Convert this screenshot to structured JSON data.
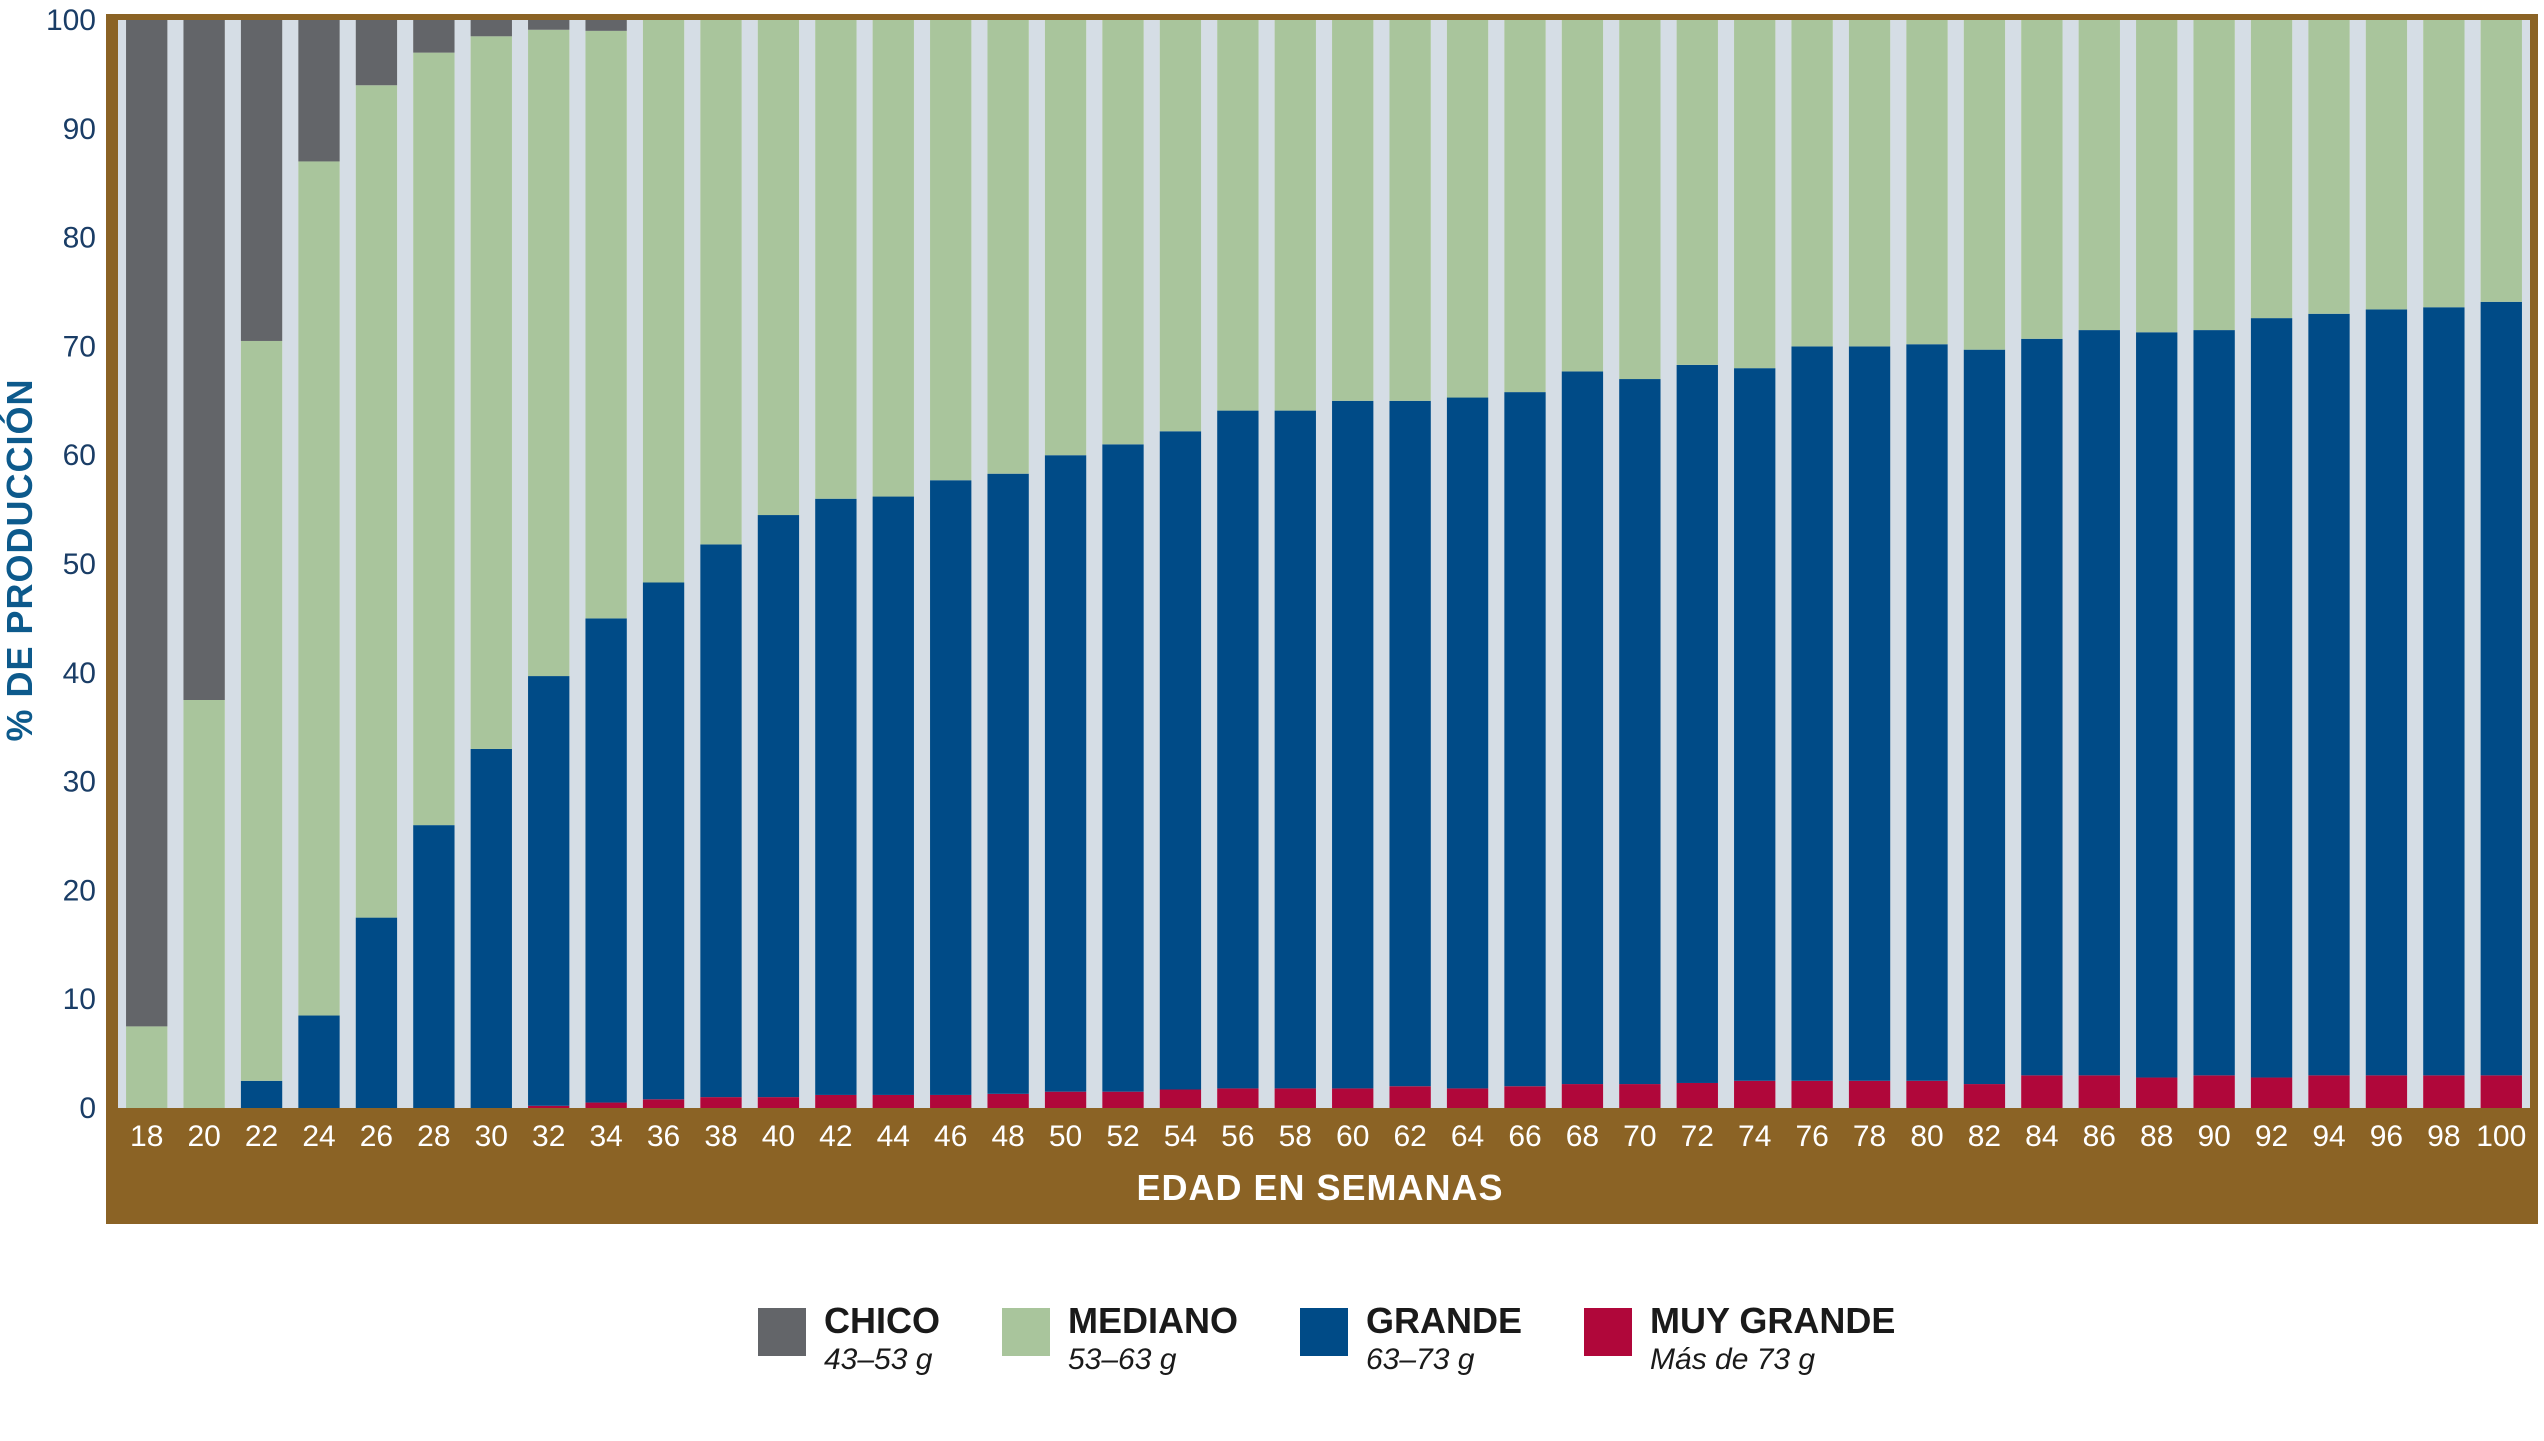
{
  "chart_data": {
    "type": "bar",
    "stacked": true,
    "xlabel": "EDAD EN SEMANAS",
    "ylabel": "% DE PRODUCCIÓN",
    "ylim": [
      0,
      100
    ],
    "yticks": [
      0,
      10,
      20,
      30,
      40,
      50,
      60,
      70,
      80,
      90,
      100
    ],
    "legend_position": "bottom",
    "categories": [
      "18",
      "20",
      "22",
      "24",
      "26",
      "28",
      "30",
      "32",
      "34",
      "36",
      "38",
      "40",
      "42",
      "44",
      "46",
      "48",
      "50",
      "52",
      "54",
      "56",
      "58",
      "60",
      "62",
      "64",
      "66",
      "68",
      "70",
      "72",
      "74",
      "76",
      "78",
      "80",
      "82",
      "84",
      "86",
      "88",
      "90",
      "92",
      "94",
      "96",
      "98",
      "100"
    ],
    "series": [
      {
        "name": "MUY GRANDE",
        "range": "Más de 73 g",
        "color": "#b0073a",
        "values": [
          0,
          0,
          0,
          0,
          0,
          0,
          0,
          0.2,
          0.5,
          0.8,
          1.0,
          1.0,
          1.2,
          1.2,
          1.2,
          1.3,
          1.5,
          1.5,
          1.7,
          1.8,
          1.8,
          1.8,
          2.0,
          1.8,
          2.0,
          2.2,
          2.2,
          2.3,
          2.5,
          2.5,
          2.5,
          2.5,
          2.2,
          3.0,
          3.0,
          2.8,
          3.0,
          2.8,
          3.0,
          3.0,
          3.0,
          3.0
        ]
      },
      {
        "name": "GRANDE",
        "range": "63–73 g",
        "color": "#004b87",
        "values": [
          0,
          0,
          2.5,
          8.5,
          17.5,
          26.0,
          33.0,
          39.5,
          44.5,
          47.5,
          50.8,
          53.5,
          54.8,
          55.0,
          56.5,
          57.0,
          58.5,
          59.5,
          60.5,
          62.3,
          62.3,
          63.2,
          63.0,
          63.5,
          63.8,
          65.5,
          64.8,
          66.0,
          65.5,
          67.5,
          67.5,
          67.7,
          67.5,
          67.7,
          68.5,
          68.5,
          68.5,
          69.8,
          70.0,
          70.4,
          70.6,
          71.1
        ]
      },
      {
        "name": "MEDIANO",
        "range": "53–63 g",
        "color": "#a9c59c",
        "values": [
          7.5,
          37.5,
          68.0,
          78.5,
          76.5,
          71.0,
          65.5,
          59.4,
          54.0,
          51.7,
          48.2,
          45.5,
          44.0,
          43.8,
          42.3,
          41.7,
          40.0,
          39.0,
          37.8,
          35.9,
          35.9,
          35.0,
          35.0,
          34.7,
          34.2,
          32.3,
          33.0,
          31.7,
          32.0,
          30.0,
          30.0,
          29.8,
          30.3,
          29.3,
          28.5,
          28.7,
          28.5,
          27.4,
          27.0,
          26.6,
          26.4,
          25.9
        ]
      },
      {
        "name": "CHICO",
        "range": "43–53 g",
        "color": "#636569",
        "values": [
          92.5,
          62.5,
          29.5,
          13.0,
          6.0,
          3.0,
          1.5,
          0.9,
          1.0,
          0.0,
          0,
          0,
          0,
          0,
          0,
          0,
          0,
          0,
          0,
          0,
          0,
          0,
          0,
          0,
          0,
          0,
          0,
          0,
          0,
          0,
          0,
          0,
          0,
          0,
          0,
          0,
          0,
          0,
          0,
          0,
          0,
          0
        ]
      }
    ]
  }
}
